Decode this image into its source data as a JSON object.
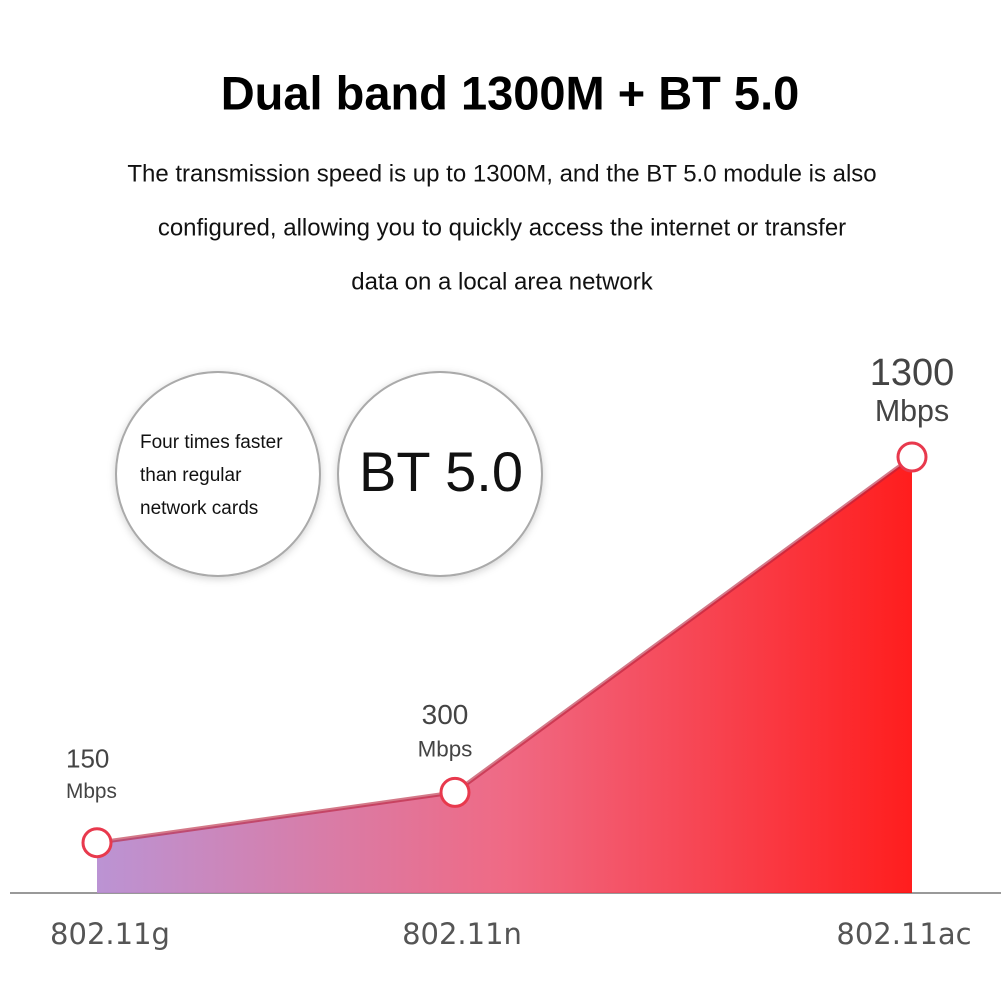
{
  "chart_data": {
    "type": "area",
    "title": "Dual band 1300M + BT 5.0",
    "description": [
      "The transmission speed is up to 1300M, and the BT 5.0 module is also",
      "configured, allowing you to quickly access the internet or transfer",
      "data on a local area network"
    ],
    "badges": [
      [
        "Four times faster",
        "than regular",
        "network cards"
      ],
      [
        "BT 5.0"
      ]
    ],
    "categories": [
      "802.11g",
      "802.11n",
      "802.11ac"
    ],
    "values": [
      150,
      300,
      1300
    ],
    "unit": "Mbps",
    "ylim": [
      0,
      1300
    ],
    "colors": [
      "#b58ad0",
      "#ee5d7a",
      "#ff0a0a"
    ],
    "marker_color": "#e8394d"
  }
}
